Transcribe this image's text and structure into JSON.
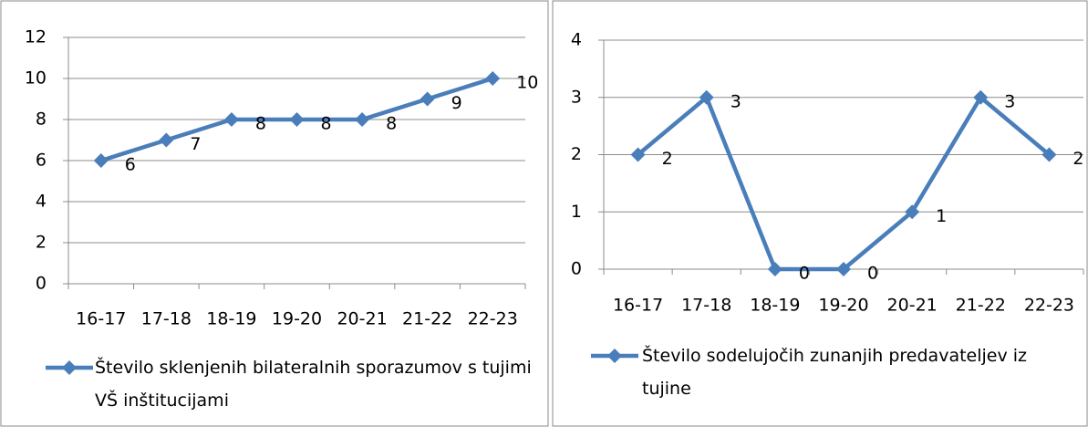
{
  "chart_data": [
    {
      "type": "line",
      "categories": [
        "16-17",
        "17-18",
        "18-19",
        "19-20",
        "20-21",
        "21-22",
        "22-23"
      ],
      "series": [
        {
          "name": "Število sklenjenih bilateralnih sporazumov s tujimi VŠ inštitucijami",
          "color": "#4a7ebb",
          "values": [
            6,
            7,
            8,
            8,
            8,
            9,
            10
          ]
        }
      ],
      "ylim": [
        0,
        12
      ],
      "yticks": [
        0,
        2,
        4,
        6,
        8,
        10,
        12
      ],
      "grid": true
    },
    {
      "type": "line",
      "categories": [
        "16-17",
        "17-18",
        "18-19",
        "19-20",
        "20-21",
        "21-22",
        "22-23"
      ],
      "series": [
        {
          "name": "Število sodelujočih zunanjih predavateljev iz tujine",
          "color": "#4a7ebb",
          "values": [
            2,
            3,
            0,
            0,
            1,
            3,
            2
          ]
        }
      ],
      "ylim": [
        0,
        4
      ],
      "yticks": [
        0,
        1,
        2,
        3,
        4
      ],
      "grid": true
    }
  ]
}
